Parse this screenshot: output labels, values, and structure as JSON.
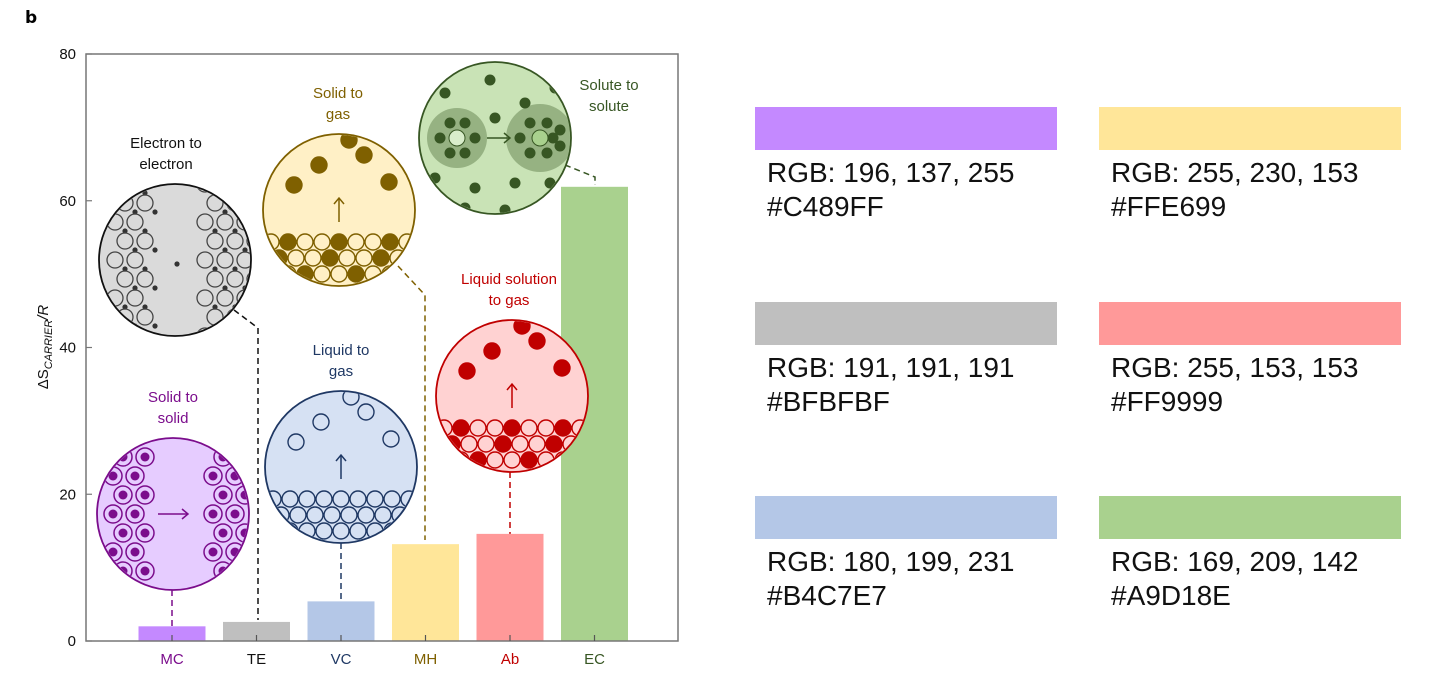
{
  "panel_label": "b",
  "chart_data": {
    "type": "bar",
    "title": "",
    "xlabel": "",
    "ylabel": "ΔS_CARRIER/R",
    "ylabel_main": "ΔS",
    "ylabel_sub": "CARRIER",
    "ylabel_tail": "/R",
    "ylim": [
      0,
      80
    ],
    "yticks": [
      0,
      20,
      40,
      60,
      80
    ],
    "grid": false,
    "categories": [
      "MC",
      "TE",
      "VC",
      "MH",
      "Ab",
      "EC"
    ],
    "values": [
      2.0,
      2.6,
      5.4,
      13.2,
      14.6,
      61.9
    ],
    "bar_colors": [
      "#C489FF",
      "#BFBFBF",
      "#B4C7E7",
      "#FFE699",
      "#FF9999",
      "#A9D18E"
    ],
    "label_colors": [
      "#7B0D8C",
      "#111111",
      "#1F3864",
      "#7F6000",
      "#C00000",
      "#375623"
    ],
    "annotations": [
      {
        "category": "MC",
        "lines": [
          "Solid to",
          "solid"
        ],
        "color": "#7B0D8C",
        "fill": "#E6CCFF"
      },
      {
        "category": "TE",
        "lines": [
          "Electron to",
          "electron"
        ],
        "color": "#111111",
        "fill": "#DADADA"
      },
      {
        "category": "VC",
        "lines": [
          "Liquid to",
          "gas"
        ],
        "color": "#1F3864",
        "fill": "#D6E1F3"
      },
      {
        "category": "MH",
        "lines": [
          "Solid to",
          "gas"
        ],
        "color": "#7F6000",
        "fill": "#FFF0C6"
      },
      {
        "category": "Ab",
        "lines": [
          "Liquid solution",
          "to gas"
        ],
        "color": "#C00000",
        "fill": "#FFD2D2"
      },
      {
        "category": "EC",
        "lines": [
          "Solute to",
          "solute"
        ],
        "color": "#375623",
        "fill": "#C9E3B6"
      }
    ]
  },
  "swatches": [
    {
      "rgb_label": "RGB: 196, 137, 255",
      "hex": "#C489FF"
    },
    {
      "rgb_label": "RGB: 255, 230, 153",
      "hex": "#FFE699"
    },
    {
      "rgb_label": "RGB: 191, 191, 191",
      "hex": "#BFBFBF"
    },
    {
      "rgb_label": "RGB: 255, 153, 153",
      "hex": "#FF9999"
    },
    {
      "rgb_label": "RGB: 180, 199, 231",
      "hex": "#B4C7E7"
    },
    {
      "rgb_label": "RGB: 169, 209, 142",
      "hex": "#A9D18E"
    }
  ]
}
